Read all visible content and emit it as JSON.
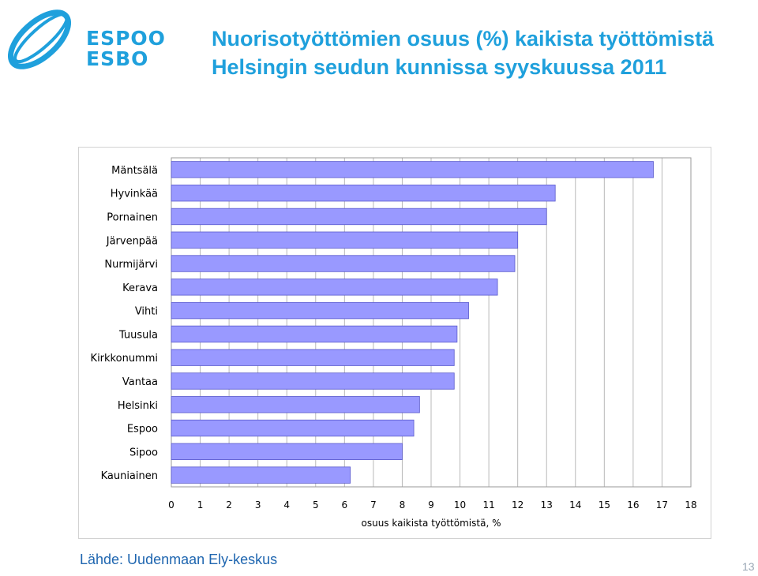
{
  "brand": {
    "line1": "ESPOO",
    "line2": "ESBO",
    "color": "#1fa0dc"
  },
  "title": {
    "line1": "Nuorisotyöttömien osuus (%) kaikista työttömistä",
    "line2": "Helsingin seudun kunnissa syyskuussa 2011",
    "color": "#1fa0dc"
  },
  "chart_data": {
    "type": "bar",
    "orientation": "horizontal",
    "categories": [
      "Mäntsälä",
      "Hyvinkää",
      "Pornainen",
      "Järvenpää",
      "Nurmijärvi",
      "Kerava",
      "Vihti",
      "Tuusula",
      "Kirkkonummi",
      "Vantaa",
      "Helsinki",
      "Espoo",
      "Sipoo",
      "Kauniainen"
    ],
    "values": [
      16.7,
      13.3,
      13.0,
      12.0,
      11.9,
      11.3,
      10.3,
      9.9,
      9.8,
      9.8,
      8.6,
      8.4,
      8.0,
      6.2
    ],
    "xlabel": "osuus kaikista työttömistä, %",
    "ylabel": "",
    "xlim": [
      0,
      18
    ],
    "xticks": [
      "0",
      "1",
      "2",
      "3",
      "4",
      "5",
      "6",
      "7",
      "8",
      "9",
      "10",
      "11",
      "12",
      "13",
      "14",
      "15",
      "16",
      "17",
      "18"
    ],
    "grid": "vertical",
    "legend": "none",
    "bar_color": "#9999ff",
    "bar_border_color": "#5a5acc"
  },
  "footer": {
    "source": "Lähde: Uudenmaan Ely-keskus",
    "page_number": "13"
  }
}
